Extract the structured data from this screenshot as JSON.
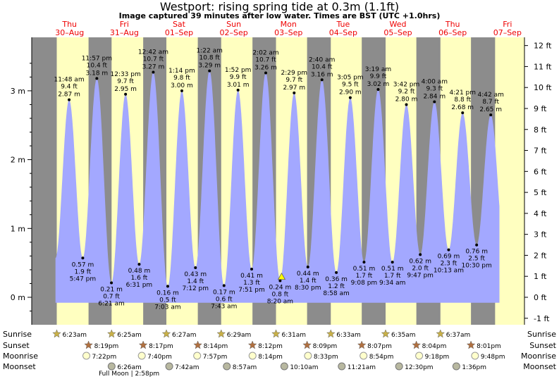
{
  "chart_data": {
    "type": "area",
    "title": "Westport: rising  spring tide at 0.3m (1.1ft)",
    "subtitle": "Image captured 39 minutes after low water. Times are BST (UTC +1.0hrs)",
    "days": [
      {
        "name": "Thu",
        "date": "30–Aug"
      },
      {
        "name": "Fri",
        "date": "31–Aug"
      },
      {
        "name": "Sat",
        "date": "01–Sep"
      },
      {
        "name": "Sun",
        "date": "02–Sep"
      },
      {
        "name": "Mon",
        "date": "03–Sep"
      },
      {
        "name": "Tue",
        "date": "04–Sep"
      },
      {
        "name": "Wed",
        "date": "05–Sep"
      },
      {
        "name": "Thu",
        "date": "06–Sep"
      },
      {
        "name": "Fri",
        "date": "07–Sep"
      }
    ],
    "y_left_ticks": [
      "0 m",
      "1 m",
      "2 m",
      "3 m"
    ],
    "y_right_ticks": [
      "-1 ft",
      "0 ft",
      "1 ft",
      "2 ft",
      "3 ft",
      "4 ft",
      "5 ft",
      "6 ft",
      "7 ft",
      "8 ft",
      "9 ft",
      "10 ft",
      "11 ft",
      "12 ft"
    ],
    "ylim_m": [
      -0.3,
      3.6
    ],
    "tides": [
      {
        "type": "high",
        "hour": 11.8,
        "time": "11:48 am",
        "ft": "9.4 ft",
        "m": 2.87,
        "m_label": "2.87 m"
      },
      {
        "type": "low",
        "hour": 17.78,
        "time": "5:47 pm",
        "ft": "1.9 ft",
        "m": 0.57,
        "m_label": "0.57 m"
      },
      {
        "type": "high",
        "hour": 23.95,
        "time": "11:57 pm",
        "ft": "10.4 ft",
        "m": 3.18,
        "m_label": "3.18 m"
      },
      {
        "type": "low",
        "hour": 30.35,
        "time": "6:21 am",
        "ft": "0.7 ft",
        "m": 0.21,
        "m_label": "0.21 m"
      },
      {
        "type": "high",
        "hour": 36.55,
        "time": "12:33 pm",
        "ft": "9.7 ft",
        "m": 2.95,
        "m_label": "2.95 m"
      },
      {
        "type": "low",
        "hour": 42.52,
        "time": "6:31 pm",
        "ft": "1.6 ft",
        "m": 0.48,
        "m_label": "0.48 m"
      },
      {
        "type": "high",
        "hour": 48.7,
        "time": "12:42 am",
        "ft": "10.7 ft",
        "m": 3.27,
        "m_label": "3.27 m"
      },
      {
        "type": "low",
        "hour": 55.05,
        "time": "7:03 am",
        "ft": "0.5 ft",
        "m": 0.16,
        "m_label": "0.16 m"
      },
      {
        "type": "high",
        "hour": 61.23,
        "time": "1:14 pm",
        "ft": "9.8 ft",
        "m": 3.0,
        "m_label": "3.00 m"
      },
      {
        "type": "low",
        "hour": 67.2,
        "time": "7:12 pm",
        "ft": "1.4 ft",
        "m": 0.43,
        "m_label": "0.43 m"
      },
      {
        "type": "high",
        "hour": 73.37,
        "time": "1:22 am",
        "ft": "10.8 ft",
        "m": 3.29,
        "m_label": "3.29 m"
      },
      {
        "type": "low",
        "hour": 79.72,
        "time": "7:43 am",
        "ft": "0.6 ft",
        "m": 0.17,
        "m_label": "0.17 m"
      },
      {
        "type": "high",
        "hour": 85.87,
        "time": "1:52 pm",
        "ft": "9.9 ft",
        "m": 3.01,
        "m_label": "3.01 m"
      },
      {
        "type": "low",
        "hour": 91.85,
        "time": "7:51 pm",
        "ft": "1.3 ft",
        "m": 0.41,
        "m_label": "0.41 m"
      },
      {
        "type": "high",
        "hour": 98.03,
        "time": "2:02 am",
        "ft": "10.7 ft",
        "m": 3.26,
        "m_label": "3.26 m"
      },
      {
        "type": "low",
        "hour": 104.33,
        "time": "8:20 am",
        "ft": "0.8 ft",
        "m": 0.24,
        "m_label": "0.24 m"
      },
      {
        "type": "high",
        "hour": 110.48,
        "time": "2:29 pm",
        "ft": "9.7 ft",
        "m": 2.97,
        "m_label": "2.97 m"
      },
      {
        "type": "low",
        "hour": 116.5,
        "time": "8:30 pm",
        "ft": "1.4 ft",
        "m": 0.44,
        "m_label": "0.44 m"
      },
      {
        "type": "high",
        "hour": 122.67,
        "time": "2:40 am",
        "ft": "10.4 ft",
        "m": 3.16,
        "m_label": "3.16 m"
      },
      {
        "type": "low",
        "hour": 128.97,
        "time": "8:58 am",
        "ft": "1.2 ft",
        "m": 0.36,
        "m_label": "0.36 m"
      },
      {
        "type": "high",
        "hour": 135.08,
        "time": "3:05 pm",
        "ft": "9.5 ft",
        "m": 2.9,
        "m_label": "2.90 m"
      },
      {
        "type": "low",
        "hour": 141.13,
        "time": "9:08 pm",
        "ft": "1.7 ft",
        "m": 0.51,
        "m_label": "0.51 m"
      },
      {
        "type": "high",
        "hour": 147.32,
        "time": "3:19 am",
        "ft": "9.9 ft",
        "m": 3.02,
        "m_label": "3.02 m"
      },
      {
        "type": "low",
        "hour": 153.57,
        "time": "9:34 am",
        "ft": "1.7 ft",
        "m": 0.51,
        "m_label": "0.51 m"
      },
      {
        "type": "high",
        "hour": 159.7,
        "time": "3:42 pm",
        "ft": "9.2 ft",
        "m": 2.8,
        "m_label": "2.80 m"
      },
      {
        "type": "low",
        "hour": 165.78,
        "time": "9:47 pm",
        "ft": "2.0 ft",
        "m": 0.62,
        "m_label": "0.62 m"
      },
      {
        "type": "high",
        "hour": 172.0,
        "time": "4:00 am",
        "ft": "9.3 ft",
        "m": 2.84,
        "m_label": "2.84 m"
      },
      {
        "type": "low",
        "hour": 178.22,
        "time": "10:13 am",
        "ft": "2.3 ft",
        "m": 0.69,
        "m_label": "0.69 m"
      },
      {
        "type": "high",
        "hour": 184.35,
        "time": "4:21 pm",
        "ft": "8.8 ft",
        "m": 2.68,
        "m_label": "2.68 m"
      },
      {
        "type": "low",
        "hour": 190.5,
        "time": "10:30 pm",
        "ft": "2.5 ft",
        "m": 0.76,
        "m_label": "0.76 m"
      },
      {
        "type": "high",
        "hour": 196.7,
        "time": "4:42 am",
        "ft": "8.7 ft",
        "m": 2.65,
        "m_label": "2.65 m"
      }
    ],
    "current_marker": {
      "hour": 104.98,
      "m": 0.3
    },
    "astro": {
      "labels": {
        "sunrise": "Sunrise",
        "sunset": "Sunset",
        "moonrise": "Moonrise",
        "moonset": "Moonset"
      },
      "sunrise": [
        {
          "hour": 6.38,
          "time": "6:23am"
        },
        {
          "hour": 30.42,
          "time": "6:25am"
        },
        {
          "hour": 54.45,
          "time": "6:27am"
        },
        {
          "hour": 78.48,
          "time": "6:29am"
        },
        {
          "hour": 102.52,
          "time": "6:31am"
        },
        {
          "hour": 126.55,
          "time": "6:33am"
        },
        {
          "hour": 150.58,
          "time": "6:35am"
        },
        {
          "hour": 174.62,
          "time": "6:37am"
        }
      ],
      "sunset": [
        {
          "hour": 20.32,
          "time": "8:19pm"
        },
        {
          "hour": 44.28,
          "time": "8:17pm"
        },
        {
          "hour": 68.23,
          "time": "8:14pm"
        },
        {
          "hour": 92.2,
          "time": "8:12pm"
        },
        {
          "hour": 116.15,
          "time": "8:09pm"
        },
        {
          "hour": 140.12,
          "time": "8:07pm"
        },
        {
          "hour": 164.07,
          "time": "8:04pm"
        },
        {
          "hour": 188.02,
          "time": "8:01pm"
        }
      ],
      "moonrise": [
        {
          "hour": 19.37,
          "time": "7:22pm"
        },
        {
          "hour": 43.67,
          "time": "7:40pm"
        },
        {
          "hour": 67.95,
          "time": "7:57pm"
        },
        {
          "hour": 92.23,
          "time": "8:14pm"
        },
        {
          "hour": 116.55,
          "time": "8:33pm"
        },
        {
          "hour": 140.9,
          "time": "8:54pm"
        },
        {
          "hour": 165.3,
          "time": "9:18pm"
        },
        {
          "hour": 189.8,
          "time": "9:48pm"
        }
      ],
      "moonset": [
        {
          "hour": 30.43,
          "time": "6:26am"
        },
        {
          "hour": 55.7,
          "time": "7:42am"
        },
        {
          "hour": 80.95,
          "time": "8:57am"
        },
        {
          "hour": 106.17,
          "time": "10:10am"
        },
        {
          "hour": 131.35,
          "time": "11:21am"
        },
        {
          "hour": 156.5,
          "time": "12:30pm"
        },
        {
          "hour": 181.6,
          "time": "1:36pm"
        }
      ],
      "full_moon": "Full Moon | 2:58pm"
    },
    "colors": {
      "night": "#8c8c8c",
      "day": "#ffffc0",
      "water": "#a3a8ff",
      "text_red": "#ee0000",
      "sun_star": "#c8b048",
      "sunset_star": "#b07040",
      "moonrise": "#ffffcc",
      "moonset": "#b8b8a0"
    }
  }
}
